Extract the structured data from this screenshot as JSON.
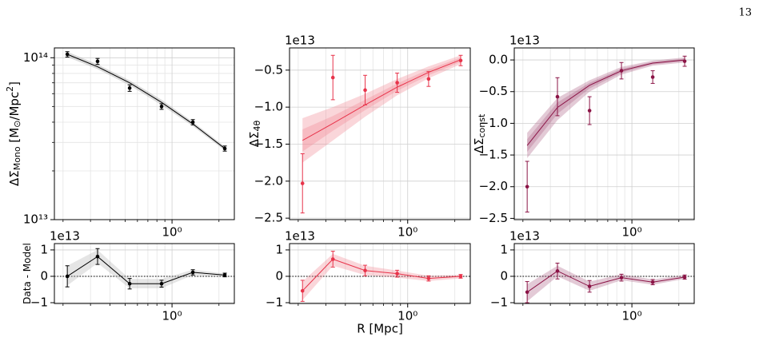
{
  "page_number": "13",
  "chart_data": [
    {
      "type": "errorbar",
      "ylog": true,
      "grid": true,
      "color": "#000000",
      "band_color": "#9a9a9a",
      "x": [
        0.213,
        0.333,
        0.535,
        0.857,
        1.36,
        2.18
      ],
      "values": [
        105000000000000.0,
        95000000000000.0,
        65000000000000.0,
        50000000000000.0,
        40000000000000.0,
        27500000000000.0
      ],
      "errors": [
        4000000000000.0,
        4000000000000.0,
        3000000000000.0,
        2000000000000.0,
        1500000000000.0,
        1000000000000.0
      ],
      "model": [
        105000000000000.0,
        88000000000000.0,
        70000000000000.0,
        53000000000000.0,
        39000000000000.0,
        27500000000000.0
      ],
      "bands": [
        {
          "lower": [
            101000000000000.0,
            85000000000000.0,
            67500000000000.0,
            51000000000000.0,
            37800000000000.0,
            26700000000000.0
          ],
          "upper": [
            109000000000000.0,
            91000000000000.0,
            72500000000000.0,
            55000000000000.0,
            40200000000000.0,
            28300000000000.0
          ]
        }
      ],
      "xlim": [
        0.176,
        2.51
      ],
      "xticks": [
        {
          "value": 1,
          "label": "10⁰"
        }
      ],
      "minor_xticks": [
        0.2,
        0.3,
        0.4,
        0.5,
        0.6,
        0.7,
        0.8,
        0.9,
        2
      ],
      "ylim": [
        10000000000000.0,
        115000000000000.0
      ],
      "yticks": [
        {
          "value": 10000000000000.0,
          "label": "10¹³"
        },
        {
          "value": 100000000000000.0,
          "label": "10¹⁴"
        }
      ],
      "minor_yticks": [
        20000000000000.0,
        30000000000000.0,
        40000000000000.0,
        50000000000000.0,
        60000000000000.0,
        70000000000000.0,
        80000000000000.0,
        90000000000000.0
      ],
      "ylabel": [
        {
          "text": "ΔΣ"
        },
        {
          "text": "Mono",
          "sub": true
        },
        {
          "text": " [M"
        },
        {
          "text": "⊙",
          "sub": true
        },
        {
          "text": "/Mpc"
        },
        {
          "text": "2",
          "sup": true
        },
        {
          "text": "]"
        }
      ]
    },
    {
      "type": "errorbar",
      "grid": true,
      "color": "#e8334a",
      "band_color": "#f08a96",
      "x": [
        0.213,
        0.333,
        0.535,
        0.857,
        1.36,
        2.18
      ],
      "values": [
        -2.03,
        -0.6,
        -0.77,
        -0.67,
        -0.62,
        -0.37
      ],
      "errors": [
        0.4,
        0.3,
        0.2,
        0.13,
        0.1,
        0.07
      ],
      "model": [
        -1.45,
        -1.22,
        -0.97,
        -0.73,
        -0.53,
        -0.36
      ],
      "bands": [
        {
          "lower": [
            -1.75,
            -1.45,
            -1.13,
            -0.84,
            -0.61,
            -0.42
          ],
          "upper": [
            -1.15,
            -1.0,
            -0.82,
            -0.62,
            -0.45,
            -0.3
          ]
        },
        {
          "lower": [
            -1.6,
            -1.32,
            -1.04,
            -0.78,
            -0.57,
            -0.39
          ],
          "upper": [
            -1.3,
            -1.12,
            -0.9,
            -0.68,
            -0.49,
            -0.33
          ]
        }
      ],
      "xlim": [
        0.176,
        2.51
      ],
      "xticks": [
        {
          "value": 1,
          "label": "10⁰"
        }
      ],
      "minor_xticks": [
        0.2,
        0.3,
        0.4,
        0.5,
        0.6,
        0.7,
        0.8,
        0.9,
        2
      ],
      "ylim": [
        -2.52,
        -0.2
      ],
      "yticks": [
        {
          "value": -2.5,
          "label": "−2.5"
        },
        {
          "value": -2.0,
          "label": "−2.0"
        },
        {
          "value": -1.5,
          "label": "−1.5"
        },
        {
          "value": -1.0,
          "label": "−1.0"
        },
        {
          "value": -0.5,
          "label": "−0.5"
        }
      ],
      "offset_label": "1e13",
      "ylabel": [
        {
          "text": "ΔΣ"
        },
        {
          "text": "4θ",
          "sub": true
        }
      ]
    },
    {
      "type": "errorbar",
      "grid": true,
      "color": "#8b1446",
      "band_color": "#b0668a",
      "x": [
        0.213,
        0.333,
        0.535,
        0.857,
        1.36,
        2.18
      ],
      "values": [
        -2.0,
        -0.58,
        -0.8,
        -0.17,
        -0.27,
        -0.02
      ],
      "errors": [
        0.4,
        0.3,
        0.22,
        0.13,
        0.1,
        0.08
      ],
      "model": [
        -1.35,
        -0.75,
        -0.4,
        -0.17,
        -0.05,
        0.0
      ],
      "bands": [
        {
          "lower": [
            -1.55,
            -0.95,
            -0.5,
            -0.23,
            -0.09,
            -0.04
          ],
          "upper": [
            -1.15,
            -0.6,
            -0.32,
            -0.11,
            -0.01,
            0.04
          ]
        },
        {
          "lower": [
            -1.45,
            -0.85,
            -0.45,
            -0.2,
            -0.07,
            -0.02
          ],
          "upper": [
            -1.25,
            -0.67,
            -0.36,
            -0.14,
            -0.03,
            0.02
          ]
        }
      ],
      "xlim": [
        0.176,
        2.51
      ],
      "xticks": [
        {
          "value": 1,
          "label": "10⁰"
        }
      ],
      "minor_xticks": [
        0.2,
        0.3,
        0.4,
        0.5,
        0.6,
        0.7,
        0.8,
        0.9,
        2
      ],
      "ylim": [
        -2.52,
        0.19
      ],
      "yticks": [
        {
          "value": -2.5,
          "label": "−2.5"
        },
        {
          "value": -2.0,
          "label": "−2.0"
        },
        {
          "value": -1.5,
          "label": "−1.5"
        },
        {
          "value": -1.0,
          "label": "−1.0"
        },
        {
          "value": -0.5,
          "label": "−0.5"
        },
        {
          "value": 0.0,
          "label": "0.0"
        }
      ],
      "offset_label": "1e13",
      "ylabel": [
        {
          "text": "ΔΣ"
        },
        {
          "text": "const",
          "sub": true
        }
      ]
    },
    {
      "type": "errorbar",
      "connect": true,
      "grid": true,
      "color": "#000000",
      "band_color": "#b5b5b5",
      "hline": 0,
      "x": [
        0.213,
        0.333,
        0.535,
        0.857,
        1.36,
        2.18
      ],
      "values": [
        0.0,
        0.75,
        -0.28,
        -0.28,
        0.15,
        0.05
      ],
      "errors": [
        0.4,
        0.3,
        0.2,
        0.13,
        0.1,
        0.07
      ],
      "bands": [
        {
          "lower": [
            -0.35,
            0.5,
            -0.45,
            -0.45,
            0.05,
            -0.02
          ],
          "upper": [
            0.4,
            1.0,
            -0.1,
            -0.1,
            0.25,
            0.1
          ]
        }
      ],
      "xlim": [
        0.176,
        2.51
      ],
      "xticks": [
        {
          "value": 1,
          "label": "10⁰"
        }
      ],
      "minor_xticks": [
        0.2,
        0.3,
        0.4,
        0.5,
        0.6,
        0.7,
        0.8,
        0.9,
        2
      ],
      "ylim": [
        -1.03,
        1.24
      ],
      "yticks": [
        {
          "value": -1,
          "label": "−1"
        },
        0,
        1
      ],
      "offset_label": "1e13",
      "ylabel": [
        {
          "text": "Data - Model"
        }
      ]
    },
    {
      "type": "errorbar",
      "connect": true,
      "grid": true,
      "color": "#e8334a",
      "band_color": "#f08a96",
      "hline": 0,
      "x": [
        0.213,
        0.333,
        0.535,
        0.857,
        1.36,
        2.18
      ],
      "values": [
        -0.55,
        0.65,
        0.22,
        0.1,
        -0.08,
        0.0
      ],
      "errors": [
        0.4,
        0.3,
        0.2,
        0.13,
        0.1,
        0.07
      ],
      "bands": [
        {
          "lower": [
            -0.9,
            0.4,
            0.05,
            -0.05,
            -0.18,
            -0.08
          ],
          "upper": [
            -0.2,
            0.85,
            0.4,
            0.22,
            0.02,
            0.06
          ]
        }
      ],
      "xlim": [
        0.176,
        2.51
      ],
      "xticks": [
        {
          "value": 1,
          "label": "10⁰"
        }
      ],
      "minor_xticks": [
        0.2,
        0.3,
        0.4,
        0.5,
        0.6,
        0.7,
        0.8,
        0.9,
        2
      ],
      "ylim": [
        -1.03,
        1.24
      ],
      "yticks": [
        {
          "value": -1,
          "label": "−1"
        },
        0,
        1
      ],
      "offset_label": "1e13",
      "xlabel": "R [Mpc]"
    },
    {
      "type": "errorbar",
      "connect": true,
      "grid": true,
      "color": "#8b1446",
      "band_color": "#b0668a",
      "hline": 0,
      "x": [
        0.213,
        0.333,
        0.535,
        0.857,
        1.36,
        2.18
      ],
      "values": [
        -0.6,
        0.2,
        -0.38,
        -0.05,
        -0.22,
        -0.03
      ],
      "errors": [
        0.4,
        0.3,
        0.22,
        0.13,
        0.1,
        0.08
      ],
      "bands": [
        {
          "lower": [
            -0.95,
            0.0,
            -0.55,
            -0.15,
            -0.32,
            -0.1
          ],
          "upper": [
            -0.3,
            0.4,
            -0.2,
            0.08,
            -0.12,
            0.04
          ]
        }
      ],
      "xlim": [
        0.176,
        2.51
      ],
      "xticks": [
        {
          "value": 1,
          "label": "10⁰"
        }
      ],
      "minor_xticks": [
        0.2,
        0.3,
        0.4,
        0.5,
        0.6,
        0.7,
        0.8,
        0.9,
        2
      ],
      "ylim": [
        -1.03,
        1.24
      ],
      "yticks": [
        {
          "value": -1,
          "label": "−1"
        },
        0,
        1
      ],
      "offset_label": "1e13"
    }
  ]
}
